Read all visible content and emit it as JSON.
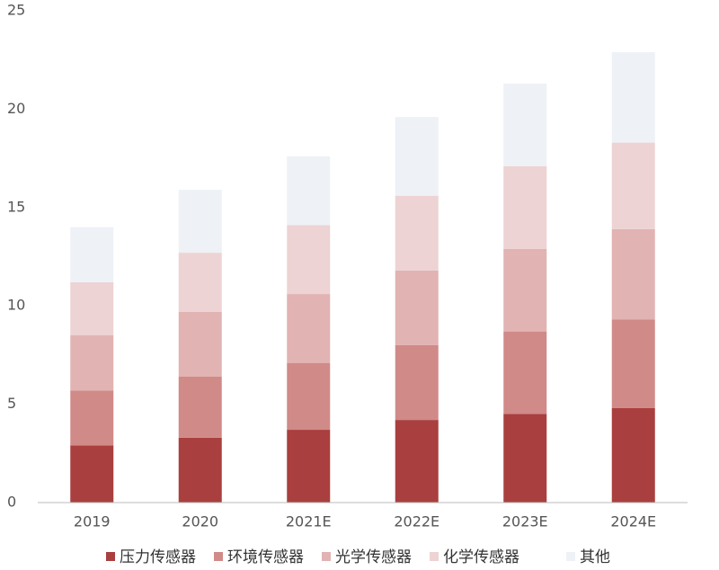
{
  "chart_data": {
    "type": "stacked-bar",
    "categories": [
      "2019",
      "2020",
      "2021E",
      "2022E",
      "2023E",
      "2024E"
    ],
    "series": [
      {
        "name": "压力传感器",
        "color": "#a93f3e",
        "values": [
          2.9,
          3.3,
          3.7,
          4.2,
          4.5,
          4.8
        ]
      },
      {
        "name": "环境传感器",
        "color": "#d08a88",
        "values": [
          2.8,
          3.1,
          3.4,
          3.8,
          4.2,
          4.5
        ]
      },
      {
        "name": "光学传感器",
        "color": "#e1b3b2",
        "values": [
          2.8,
          3.3,
          3.5,
          3.8,
          4.2,
          4.6
        ]
      },
      {
        "name": "化学传感器",
        "color": "#edd3d3",
        "values": [
          2.7,
          3.0,
          3.5,
          3.8,
          4.2,
          4.4
        ]
      },
      {
        "name": "其他",
        "color": "#eef1f6",
        "values": [
          2.8,
          3.2,
          3.5,
          4.0,
          4.2,
          4.6
        ]
      }
    ],
    "ylim": [
      0,
      25
    ],
    "yticks": [
      0,
      5,
      10,
      15,
      20,
      25
    ],
    "grid": false,
    "legend": "bottom"
  }
}
